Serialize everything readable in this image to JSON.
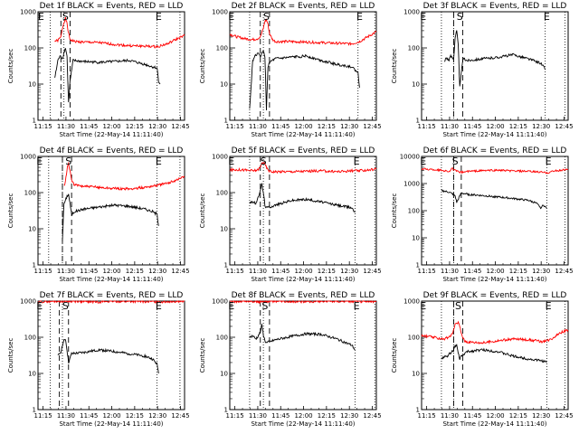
{
  "figure": {
    "ylabel": "Counts/sec",
    "xlabel": "Start Time (22-May-14 11:11:40)",
    "xticks": [
      "11:15",
      "11:30",
      "11:45",
      "12:00",
      "12:15",
      "12:30",
      "12:45"
    ],
    "yticks": [
      "1",
      "10",
      "100",
      "1000",
      "10000"
    ]
  },
  "chart_data": [
    {
      "type": "line",
      "title": "Det 1f BLACK = Events, RED = LLD",
      "xlabel": "Start Time (22-May-14 11:11:40)",
      "ylabel": "Counts/sec",
      "x_unit": "minutes after 11:11:40",
      "xlim": [
        0,
        96
      ],
      "ylim": [
        1,
        1000
      ],
      "ymax_tick": "1000",
      "log_y": true,
      "dotted_lines": [
        8,
        17,
        78,
        93
      ],
      "dashed_lines": [
        15,
        21
      ],
      "markers": [
        {
          "label": "E",
          "x": 2
        },
        {
          "label": "S",
          "x": 18
        },
        {
          "label": "E",
          "x": 79
        }
      ],
      "series": [
        {
          "name": "RED = LLD",
          "color": "#ff0000",
          "x": [
            11,
            13,
            15,
            16,
            17,
            18,
            19,
            20,
            21,
            24,
            30,
            40,
            50,
            60,
            70,
            78,
            85,
            90,
            96
          ],
          "y": [
            155,
            160,
            200,
            350,
            520,
            650,
            470,
            250,
            170,
            150,
            145,
            140,
            125,
            115,
            112,
            108,
            130,
            170,
            220
          ]
        },
        {
          "name": "BLACK = Events",
          "color": "#000000",
          "x": [
            11,
            12,
            13,
            14,
            15,
            16,
            17,
            18,
            19,
            20,
            21,
            23,
            30,
            40,
            50,
            60,
            70,
            75,
            78,
            79,
            80
          ],
          "y": [
            15,
            25,
            45,
            55,
            60,
            50,
            75,
            100,
            60,
            3,
            12,
            45,
            42,
            40,
            42,
            45,
            35,
            30,
            28,
            12,
            10
          ]
        }
      ]
    },
    {
      "type": "line",
      "title": "Det 2f BLACK = Events, RED = LLD",
      "xlabel": "Start Time (22-May-14 11:11:40)",
      "ylabel": "Counts/sec",
      "x_unit": "minutes after 11:11:40",
      "xlim": [
        0,
        96
      ],
      "ylim": [
        1,
        1000
      ],
      "ymax_tick": "1000",
      "log_y": true,
      "dotted_lines": [
        13,
        22,
        84,
        95
      ],
      "dashed_lines": [
        20,
        26
      ],
      "markers": [
        {
          "label": "E",
          "x": 1
        },
        {
          "label": "S",
          "x": 24
        },
        {
          "label": "E",
          "x": 85
        }
      ],
      "series": [
        {
          "name": "RED = LLD",
          "color": "#ff0000",
          "x": [
            0,
            5,
            10,
            15,
            18,
            20,
            22,
            23,
            24,
            25,
            26,
            28,
            30,
            40,
            50,
            60,
            70,
            80,
            85,
            90,
            96
          ],
          "y": [
            240,
            200,
            180,
            170,
            180,
            200,
            350,
            550,
            600,
            450,
            250,
            170,
            150,
            150,
            145,
            140,
            135,
            130,
            150,
            200,
            280
          ]
        },
        {
          "name": "BLACK = Events",
          "color": "#000000",
          "x": [
            13,
            15,
            16,
            18,
            20,
            22,
            23,
            24,
            25,
            26,
            28,
            30,
            40,
            50,
            60,
            70,
            80,
            84,
            85
          ],
          "y": [
            2,
            45,
            55,
            70,
            60,
            80,
            60,
            2,
            30,
            40,
            45,
            50,
            55,
            60,
            45,
            35,
            30,
            20,
            8
          ]
        }
      ]
    },
    {
      "type": "line",
      "title": "Det 3f BLACK = Events, RED = LLD",
      "xlabel": "Start Time (22-May-14 11:11:40)",
      "ylabel": "Counts/sec",
      "x_unit": "minutes after 11:11:40",
      "xlim": [
        0,
        96
      ],
      "ylim": [
        1,
        1000
      ],
      "ymax_tick": "1000",
      "log_y": true,
      "dotted_lines": [
        13,
        21,
        81,
        94
      ],
      "dashed_lines": [
        21,
        27
      ],
      "markers": [
        {
          "label": "E",
          "x": 1
        },
        {
          "label": "S",
          "x": 25
        },
        {
          "label": "E",
          "x": 82
        }
      ],
      "series": [
        {
          "name": "BLACK = Events",
          "color": "#000000",
          "x": [
            15,
            16,
            17,
            18,
            19,
            20,
            21,
            22,
            23,
            24,
            25,
            27,
            30,
            40,
            50,
            60,
            70,
            78,
            80,
            81
          ],
          "y": [
            40,
            55,
            50,
            45,
            60,
            55,
            50,
            200,
            300,
            120,
            8,
            50,
            45,
            50,
            55,
            65,
            50,
            38,
            30,
            25
          ]
        }
      ]
    },
    {
      "type": "line",
      "title": "Det 4f BLACK = Events, RED = LLD",
      "xlabel": "Start Time (22-May-14 11:11:40)",
      "ylabel": "Counts/sec",
      "x_unit": "minutes after 11:11:40",
      "xlim": [
        0,
        96
      ],
      "ylim": [
        1,
        1000
      ],
      "ymax_tick": "1000",
      "log_y": true,
      "dotted_lines": [
        7,
        16,
        78,
        93
      ],
      "dashed_lines": [
        16,
        22
      ],
      "markers": [
        {
          "label": "E",
          "x": 1
        },
        {
          "label": "S",
          "x": 20
        },
        {
          "label": "E",
          "x": 79
        }
      ],
      "series": [
        {
          "name": "RED = LLD",
          "color": "#ff0000",
          "x": [
            17,
            18,
            19,
            20,
            21,
            22,
            24,
            30,
            40,
            50,
            60,
            70,
            78,
            85,
            90,
            96
          ],
          "y": [
            150,
            200,
            450,
            650,
            400,
            220,
            160,
            150,
            140,
            130,
            125,
            140,
            160,
            180,
            220,
            280
          ]
        },
        {
          "name": "BLACK = Events",
          "color": "#000000",
          "x": [
            16,
            17,
            18,
            19,
            20,
            21,
            22,
            24,
            30,
            40,
            50,
            60,
            70,
            75,
            78,
            79
          ],
          "y": [
            5,
            50,
            60,
            80,
            90,
            50,
            25,
            30,
            35,
            40,
            45,
            42,
            35,
            30,
            25,
            12
          ]
        }
      ]
    },
    {
      "type": "line",
      "title": "Det 5f BLACK = Events, RED = LLD",
      "xlabel": "Start Time (22-May-14 11:11:40)",
      "ylabel": "Counts/sec",
      "x_unit": "minutes after 11:11:40",
      "xlim": [
        0,
        96
      ],
      "ylim": [
        1,
        1000
      ],
      "ymax_tick": "1000",
      "log_y": true,
      "dotted_lines": [
        13,
        22,
        82,
        95
      ],
      "dashed_lines": [
        20,
        26
      ],
      "markers": [
        {
          "label": "E",
          "x": 1
        },
        {
          "label": "S",
          "x": 22
        },
        {
          "label": "E",
          "x": 83
        }
      ],
      "series": [
        {
          "name": "RED = LLD",
          "color": "#ff0000",
          "x": [
            0,
            5,
            10,
            15,
            18,
            20,
            21,
            22,
            23,
            25,
            27,
            30,
            40,
            50,
            60,
            70,
            80,
            85,
            90,
            96
          ],
          "y": [
            420,
            430,
            420,
            400,
            420,
            500,
            650,
            700,
            600,
            420,
            380,
            380,
            380,
            390,
            400,
            380,
            400,
            400,
            420,
            450
          ]
        },
        {
          "name": "BLACK = Events",
          "color": "#000000",
          "x": [
            13,
            15,
            17,
            18,
            20,
            21,
            22,
            23,
            24,
            26,
            30,
            40,
            50,
            60,
            70,
            80,
            82
          ],
          "y": [
            55,
            55,
            50,
            60,
            120,
            170,
            100,
            45,
            38,
            40,
            45,
            60,
            65,
            55,
            45,
            38,
            28
          ]
        }
      ]
    },
    {
      "type": "line",
      "title": "Det 6f BLACK = Events, RED = LLD",
      "xlabel": "Start Time (22-May-14 11:11:40)",
      "ylabel": "Counts/sec",
      "x_unit": "minutes after 11:11:40",
      "xlim": [
        0,
        96
      ],
      "ylim": [
        1,
        10000
      ],
      "ymax_tick": "10000",
      "log_y": true,
      "dotted_lines": [
        13,
        21,
        82,
        94
      ],
      "dashed_lines": [
        21,
        26
      ],
      "markers": [
        {
          "label": "E",
          "x": 1
        },
        {
          "label": "S",
          "x": 22
        },
        {
          "label": "E",
          "x": 83
        }
      ],
      "series": [
        {
          "name": "RED = LLD",
          "color": "#ff0000",
          "x": [
            0,
            10,
            15,
            18,
            20,
            22,
            24,
            26,
            30,
            40,
            50,
            60,
            70,
            80,
            82,
            85,
            90,
            96
          ],
          "y": [
            3500,
            3200,
            3000,
            2800,
            3600,
            3000,
            2700,
            2600,
            2800,
            3000,
            3100,
            2900,
            2800,
            2600,
            2400,
            2800,
            3000,
            3400
          ]
        },
        {
          "name": "BLACK = Events",
          "color": "#000000",
          "x": [
            13,
            15,
            18,
            20,
            21,
            22,
            23,
            26,
            30,
            40,
            50,
            60,
            70,
            75,
            78,
            80,
            82
          ],
          "y": [
            550,
            520,
            480,
            420,
            380,
            350,
            200,
            450,
            400,
            360,
            320,
            280,
            240,
            190,
            130,
            160,
            120
          ]
        }
      ]
    },
    {
      "type": "line",
      "title": "Det 7f BLACK = Events, RED = LLD",
      "xlabel": "Start Time (22-May-14 11:11:40)",
      "ylabel": "Counts/sec",
      "x_unit": "minutes after 11:11:40",
      "xlim": [
        0,
        96
      ],
      "ylim": [
        1,
        1000
      ],
      "ymax_tick": "1000",
      "log_y": true,
      "dotted_lines": [
        8,
        16,
        78,
        93
      ],
      "dashed_lines": [
        14,
        20
      ],
      "markers": [
        {
          "label": "E",
          "x": 1
        },
        {
          "label": "S",
          "x": 18
        },
        {
          "label": "E",
          "x": 79
        }
      ],
      "series": [
        {
          "name": "RED = LLD",
          "color": "#ff0000",
          "x": [
            0,
            10,
            20,
            30,
            40,
            50,
            60,
            70,
            80,
            90,
            96
          ],
          "y": [
            950,
            980,
            1000,
            970,
            960,
            990,
            980,
            970,
            960,
            990,
            1000
          ]
        },
        {
          "name": "BLACK = Events",
          "color": "#000000",
          "x": [
            13,
            14,
            15,
            16,
            17,
            18,
            19,
            20,
            22,
            30,
            40,
            50,
            60,
            70,
            75,
            78,
            79
          ],
          "y": [
            30,
            35,
            40,
            60,
            80,
            90,
            45,
            20,
            35,
            38,
            45,
            40,
            35,
            30,
            25,
            18,
            10
          ]
        }
      ]
    },
    {
      "type": "line",
      "title": "Det 8f BLACK = Events, RED = LLD",
      "xlabel": "Start Time (22-May-14 11:11:40)",
      "ylabel": "Counts/sec",
      "x_unit": "minutes after 11:11:40",
      "xlim": [
        0,
        96
      ],
      "ylim": [
        1,
        1000
      ],
      "ymax_tick": "1000",
      "log_y": true,
      "dotted_lines": [
        13,
        22,
        82,
        95
      ],
      "dashed_lines": [
        20,
        26
      ],
      "markers": [
        {
          "label": "E",
          "x": 1
        },
        {
          "label": "S",
          "x": 23
        },
        {
          "label": "E",
          "x": 83
        }
      ],
      "series": [
        {
          "name": "RED = LLD",
          "color": "#ff0000",
          "x": [
            0,
            10,
            20,
            30,
            40,
            50,
            60,
            70,
            80,
            90,
            96
          ],
          "y": [
            970,
            990,
            960,
            1000,
            980,
            970,
            990,
            1000,
            980,
            960,
            990
          ]
        },
        {
          "name": "BLACK = Events",
          "color": "#000000",
          "x": [
            13,
            15,
            17,
            18,
            20,
            21,
            22,
            23,
            24,
            26,
            30,
            40,
            50,
            60,
            70,
            80,
            82
          ],
          "y": [
            100,
            110,
            90,
            100,
            140,
            220,
            120,
            80,
            70,
            75,
            85,
            105,
            125,
            120,
            90,
            60,
            45
          ]
        }
      ]
    },
    {
      "type": "line",
      "title": "Det 9f BLACK = Events, RED = LLD",
      "xlabel": "Start Time (22-May-14 11:11:40)",
      "ylabel": "Counts/sec",
      "x_unit": "minutes after 11:11:40",
      "xlim": [
        0,
        96
      ],
      "ylim": [
        1,
        1000
      ],
      "ymax_tick": "1000",
      "log_y": true,
      "dotted_lines": [
        13,
        21,
        82,
        94
      ],
      "dashed_lines": [
        21,
        27
      ],
      "markers": [
        {
          "label": "E",
          "x": 1
        },
        {
          "label": "S",
          "x": 24
        },
        {
          "label": "E",
          "x": 83
        }
      ],
      "series": [
        {
          "name": "RED = LLD",
          "color": "#ff0000",
          "x": [
            0,
            5,
            10,
            15,
            18,
            20,
            22,
            24,
            25,
            26,
            28,
            30,
            40,
            50,
            60,
            70,
            80,
            85,
            90,
            96
          ],
          "y": [
            110,
            105,
            95,
            90,
            100,
            120,
            220,
            260,
            200,
            130,
            80,
            75,
            70,
            80,
            90,
            85,
            75,
            90,
            130,
            160
          ]
        },
        {
          "name": "BLACK = Events",
          "color": "#000000",
          "x": [
            13,
            15,
            17,
            18,
            20,
            22,
            23,
            24,
            25,
            26,
            28,
            30,
            40,
            50,
            60,
            70,
            80,
            82
          ],
          "y": [
            25,
            30,
            28,
            35,
            40,
            55,
            60,
            35,
            25,
            30,
            35,
            40,
            45,
            40,
            30,
            25,
            22,
            20
          ]
        }
      ]
    }
  ]
}
